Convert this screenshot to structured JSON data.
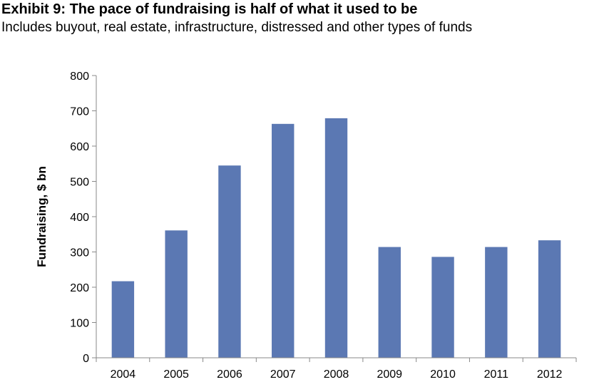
{
  "chart_data": {
    "type": "bar",
    "title": "Exhibit 9: The pace of fundraising is half of what it used to be",
    "subtitle": "Includes buyout, real estate, infrastructure, distressed and other types of funds",
    "xlabel": "",
    "ylabel": "Fundraising, $ bn",
    "categories": [
      "2004",
      "2005",
      "2006",
      "2007",
      "2008",
      "2009",
      "2010",
      "2011",
      "2012"
    ],
    "values": [
      217,
      361,
      545,
      663,
      679,
      314,
      286,
      314,
      333
    ],
    "ylim": [
      0,
      800
    ],
    "yticks": [
      0,
      100,
      200,
      300,
      400,
      500,
      600,
      700,
      800
    ],
    "grid": false,
    "legend": "none",
    "bar_color": "#5b78b3"
  }
}
